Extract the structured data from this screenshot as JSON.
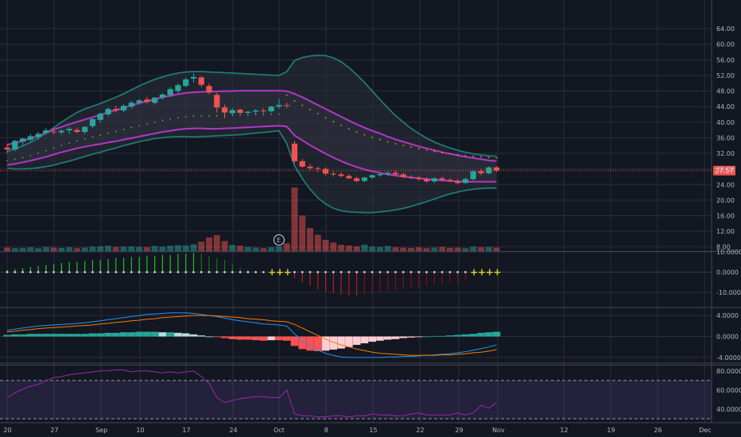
{
  "colors": {
    "background": "#131722",
    "grid": "#2a2e39",
    "up": "#26a69a",
    "down": "#ef5350",
    "band_outer": "#1f7a73",
    "band_inner": "#b535c9",
    "cross": "#d9d02a",
    "rsi_line": "#9c27b0",
    "macd_line": "#2196f3",
    "signal_line": "#f57c00"
  },
  "chart_data": [
    {
      "type": "candlestick",
      "title": "",
      "x_tick_labels": [
        "20",
        "27",
        "Sep",
        "10",
        "17",
        "24",
        "Oct",
        "8",
        "15",
        "22",
        "29",
        "Nov",
        "12",
        "19",
        "26",
        "Dec"
      ],
      "y_tick_labels": [
        "64.00",
        "60.00",
        "56.00",
        "52.00",
        "48.00",
        "44.00",
        "40.00",
        "36.00",
        "32.00",
        "28.00",
        "24.00",
        "20.00",
        "16.00",
        "12.00",
        "8.00"
      ],
      "ylim": [
        6,
        66
      ],
      "last_price": "27.57",
      "earnings_marker": "E",
      "grid": true,
      "candles": [
        [
          33.5,
          34.5,
          32.0,
          33.0
        ],
        [
          33.0,
          35.5,
          32.5,
          35.2
        ],
        [
          35.0,
          36.0,
          34.0,
          35.8
        ],
        [
          35.5,
          37.0,
          35.0,
          36.4
        ],
        [
          36.2,
          37.5,
          35.5,
          37.0
        ],
        [
          37.2,
          38.5,
          36.8,
          37.9
        ],
        [
          37.6,
          38.6,
          36.9,
          37.4
        ],
        [
          37.4,
          38.2,
          36.8,
          37.8
        ],
        [
          37.9,
          38.8,
          37.0,
          38.3
        ],
        [
          38.0,
          38.6,
          37.2,
          37.5
        ],
        [
          37.5,
          39.0,
          37.0,
          38.8
        ],
        [
          39.0,
          41.0,
          38.5,
          40.8
        ],
        [
          40.6,
          42.5,
          40.0,
          42.2
        ],
        [
          42.0,
          43.8,
          41.5,
          43.4
        ],
        [
          43.4,
          44.2,
          42.5,
          43.0
        ],
        [
          43.0,
          44.6,
          42.6,
          44.2
        ],
        [
          44.0,
          45.5,
          43.5,
          45.0
        ],
        [
          45.0,
          46.0,
          44.5,
          45.6
        ],
        [
          45.8,
          46.5,
          44.8,
          45.2
        ],
        [
          45.0,
          46.5,
          44.5,
          46.3
        ],
        [
          46.3,
          47.5,
          45.8,
          47.1
        ],
        [
          47.0,
          49.0,
          46.5,
          48.5
        ],
        [
          48.0,
          50.0,
          47.5,
          49.5
        ],
        [
          49.3,
          51.5,
          49.0,
          51.0
        ],
        [
          51.2,
          52.5,
          50.2,
          51.6
        ],
        [
          51.5,
          51.8,
          49.0,
          49.6
        ],
        [
          49.3,
          50.0,
          47.2,
          47.6
        ],
        [
          47.0,
          47.5,
          42.5,
          43.8
        ],
        [
          43.8,
          44.5,
          41.0,
          42.5
        ],
        [
          42.3,
          43.6,
          41.5,
          43.1
        ],
        [
          43.2,
          43.5,
          42.1,
          42.4
        ],
        [
          42.4,
          42.9,
          41.8,
          42.7
        ],
        [
          42.7,
          43.4,
          42.1,
          43.0
        ],
        [
          43.0,
          43.6,
          42.3,
          42.8
        ],
        [
          42.8,
          44.2,
          42.5,
          44.0
        ],
        [
          44.0,
          46.0,
          43.5,
          44.4
        ],
        [
          44.4,
          45.0,
          43.6,
          44.3
        ],
        [
          34.5,
          35.2,
          29.5,
          30.0
        ],
        [
          30.0,
          30.6,
          28.3,
          28.6
        ],
        [
          28.6,
          29.3,
          27.6,
          28.2
        ],
        [
          28.2,
          28.6,
          27.2,
          28.0
        ],
        [
          28.0,
          28.4,
          26.3,
          26.8
        ],
        [
          26.8,
          27.4,
          26.0,
          26.6
        ],
        [
          26.6,
          27.2,
          25.8,
          26.2
        ],
        [
          26.2,
          26.7,
          25.4,
          25.6
        ],
        [
          25.6,
          26.0,
          24.6,
          24.9
        ],
        [
          24.9,
          26.0,
          24.6,
          25.8
        ],
        [
          25.8,
          26.6,
          25.4,
          26.4
        ],
        [
          26.4,
          27.2,
          26.0,
          26.7
        ],
        [
          26.7,
          27.4,
          26.2,
          27.0
        ],
        [
          27.0,
          27.6,
          26.5,
          26.6
        ],
        [
          26.6,
          27.0,
          25.7,
          25.9
        ],
        [
          25.9,
          26.4,
          25.4,
          25.8
        ],
        [
          25.8,
          26.2,
          25.0,
          25.4
        ],
        [
          25.4,
          25.8,
          24.5,
          24.8
        ],
        [
          24.8,
          25.8,
          24.4,
          25.6
        ],
        [
          25.6,
          26.0,
          24.9,
          25.2
        ],
        [
          25.2,
          25.6,
          24.6,
          24.9
        ],
        [
          24.9,
          25.3,
          24.1,
          24.4
        ],
        [
          24.4,
          25.8,
          24.2,
          25.4
        ],
        [
          25.4,
          27.6,
          25.0,
          27.4
        ],
        [
          27.4,
          28.0,
          26.4,
          26.9
        ],
        [
          26.9,
          28.6,
          26.6,
          28.4
        ],
        [
          28.4,
          28.7,
          27.2,
          27.57
        ]
      ],
      "volumes": [
        1.2,
        1.0,
        1.1,
        1.3,
        1.0,
        1.4,
        1.2,
        1.1,
        1.3,
        1.0,
        1.2,
        1.5,
        1.6,
        1.8,
        1.4,
        1.5,
        1.6,
        1.4,
        1.3,
        1.7,
        1.5,
        1.8,
        2.0,
        1.9,
        2.3,
        3.2,
        4.6,
        5.4,
        3.4,
        2.1,
        1.8,
        1.4,
        1.2,
        1.0,
        1.3,
        1.6,
        2.6,
        21.5,
        12.0,
        7.8,
        5.5,
        3.8,
        2.9,
        2.1,
        1.9,
        1.6,
        2.2,
        1.5,
        1.4,
        1.7,
        1.3,
        1.2,
        1.1,
        1.3,
        1.0,
        1.2,
        1.4,
        1.1,
        1.2,
        1.0,
        1.5,
        1.3,
        1.4,
        1.2
      ],
      "volume_max": 21.5,
      "upper_outer": [
        32.5,
        33.2,
        33.9,
        34.8,
        35.9,
        37.2,
        38.6,
        40.0,
        41.3,
        42.5,
        43.4,
        44.1,
        44.8,
        45.6,
        46.4,
        47.3,
        48.3,
        49.3,
        50.2,
        51.0,
        51.6,
        52.2,
        52.6,
        52.9,
        53.0,
        53.0,
        52.9,
        52.8,
        52.7,
        52.6,
        52.5,
        52.4,
        52.3,
        52.2,
        52.1,
        52.0,
        53.0,
        55.8,
        56.6,
        57.0,
        57.2,
        57.1,
        56.5,
        55.5,
        54.0,
        52.2,
        50.2,
        48.0,
        45.8,
        43.7,
        41.7,
        40.0,
        38.4,
        37.1,
        35.9,
        34.9,
        34.1,
        33.4,
        32.8,
        32.3,
        31.9,
        31.6,
        31.4,
        31.3
      ],
      "upper_inner": [
        34.2,
        34.7,
        35.2,
        35.8,
        36.5,
        37.3,
        38.1,
        38.8,
        39.5,
        40.1,
        40.7,
        41.3,
        41.9,
        42.5,
        43.1,
        43.7,
        44.3,
        44.9,
        45.4,
        45.9,
        46.4,
        46.8,
        47.2,
        47.5,
        47.7,
        47.8,
        47.9,
        47.9,
        48.0,
        48.0,
        48.1,
        48.1,
        48.1,
        48.1,
        48.1,
        48.1,
        48.0,
        47.3,
        46.4,
        45.4,
        44.4,
        43.4,
        42.4,
        41.4,
        40.4,
        39.5,
        38.6,
        37.8,
        37.1,
        36.3,
        35.6,
        35.0,
        34.4,
        33.8,
        33.3,
        32.8,
        32.3,
        31.9,
        31.5,
        31.1,
        30.8,
        30.5,
        30.2,
        30.0
      ],
      "lower_inner": [
        29.0,
        29.3,
        29.7,
        30.1,
        30.6,
        31.1,
        31.7,
        32.3,
        32.8,
        33.3,
        33.7,
        34.1,
        34.4,
        34.8,
        35.1,
        35.5,
        35.9,
        36.3,
        36.7,
        37.1,
        37.5,
        37.8,
        38.1,
        38.3,
        38.4,
        38.4,
        38.3,
        38.3,
        38.4,
        38.5,
        38.6,
        38.7,
        38.8,
        38.9,
        39.0,
        39.1,
        38.9,
        36.6,
        35.3,
        34.1,
        33.0,
        31.9,
        30.9,
        30.0,
        29.2,
        28.5,
        27.9,
        27.4,
        27.0,
        26.6,
        26.3,
        26.0,
        25.8,
        25.6,
        25.4,
        25.2,
        25.0,
        24.9,
        24.8,
        24.7,
        24.7,
        24.7,
        24.7,
        24.7
      ],
      "lower_outer": [
        28.2,
        28.0,
        28.0,
        28.1,
        28.3,
        28.6,
        29.0,
        29.5,
        30.0,
        30.6,
        31.2,
        31.8,
        32.3,
        32.9,
        33.4,
        34.0,
        34.5,
        35.0,
        35.4,
        35.8,
        36.0,
        36.2,
        36.3,
        36.3,
        36.2,
        36.3,
        36.4,
        36.5,
        36.6,
        36.7,
        36.8,
        37.0,
        37.2,
        37.4,
        37.6,
        37.8,
        34.5,
        28.8,
        25.5,
        22.8,
        20.6,
        19.0,
        17.9,
        17.3,
        17.0,
        16.9,
        16.8,
        16.8,
        17.0,
        17.2,
        17.5,
        17.9,
        18.4,
        19.0,
        19.6,
        20.3,
        21.0,
        21.6,
        22.1,
        22.5,
        22.8,
        23.0,
        23.1,
        23.1
      ]
    },
    {
      "type": "bar",
      "title": "",
      "y_tick_labels": [
        "10.0000",
        "0.0000",
        "-10.0000"
      ],
      "ylim": [
        -13,
        10
      ],
      "values": [
        1.0,
        1.5,
        2.0,
        2.5,
        3.0,
        3.5,
        4.0,
        4.5,
        5.0,
        5.0,
        5.5,
        6.0,
        6.0,
        6.5,
        7.0,
        7.0,
        7.5,
        7.5,
        8.0,
        8.0,
        8.5,
        8.5,
        9.0,
        9.0,
        9.5,
        9.0,
        8.0,
        7.0,
        6.0,
        4.0,
        2.0,
        1.0,
        0.5,
        0.3,
        0.0,
        0.0,
        0.0,
        -3.0,
        -5.0,
        -7.0,
        -8.5,
        -9.5,
        -10.5,
        -11.0,
        -11.5,
        -11.5,
        -11.0,
        -10.5,
        -10.0,
        -9.5,
        -9.0,
        -8.5,
        -8.0,
        -7.5,
        -7.0,
        -6.5,
        -6.0,
        -5.5,
        -5.0,
        -4.0,
        0.0,
        0.0,
        0.0,
        0.0
      ],
      "squeeze_on": [
        false,
        false,
        false,
        false,
        false,
        false,
        false,
        false,
        false,
        false,
        false,
        false,
        false,
        false,
        false,
        false,
        false,
        false,
        false,
        false,
        false,
        false,
        false,
        false,
        false,
        false,
        false,
        false,
        false,
        false,
        false,
        false,
        false,
        false,
        true,
        true,
        true,
        false,
        false,
        false,
        false,
        false,
        false,
        false,
        false,
        false,
        false,
        false,
        false,
        false,
        false,
        false,
        false,
        false,
        false,
        false,
        false,
        false,
        false,
        false,
        true,
        true,
        true,
        true
      ]
    },
    {
      "type": "line",
      "title": "",
      "y_tick_labels": [
        "4.0000",
        "0.0000",
        "-4.0000"
      ],
      "ylim": [
        -5.2,
        5.2
      ],
      "series": [
        {
          "key": "macd",
          "values": [
            1.2,
            1.4,
            1.6,
            1.8,
            2.0,
            2.1,
            2.2,
            2.3,
            2.4,
            2.5,
            2.6,
            2.8,
            3.0,
            3.2,
            3.4,
            3.6,
            3.8,
            4.0,
            4.2,
            4.3,
            4.4,
            4.5,
            4.5,
            4.5,
            4.4,
            4.2,
            4.0,
            3.8,
            3.5,
            3.2,
            3.0,
            2.8,
            2.6,
            2.4,
            2.3,
            2.2,
            2.0,
            0.5,
            -0.8,
            -1.8,
            -2.6,
            -3.2,
            -3.6,
            -3.9,
            -4.0,
            -4.0,
            -4.0,
            -4.0,
            -4.0,
            -3.9,
            -3.9,
            -3.8,
            -3.8,
            -3.7,
            -3.6,
            -3.5,
            -3.4,
            -3.3,
            -3.1,
            -2.9,
            -2.6,
            -2.3,
            -2.0,
            -1.6
          ]
        },
        {
          "key": "signal",
          "values": [
            0.9,
            1.0,
            1.2,
            1.3,
            1.5,
            1.6,
            1.7,
            1.8,
            1.9,
            2.0,
            2.1,
            2.2,
            2.4,
            2.5,
            2.7,
            2.8,
            3.0,
            3.1,
            3.3,
            3.4,
            3.6,
            3.7,
            3.8,
            3.9,
            4.0,
            4.0,
            4.0,
            3.9,
            3.8,
            3.7,
            3.6,
            3.4,
            3.3,
            3.2,
            3.0,
            2.9,
            2.8,
            2.3,
            1.6,
            0.9,
            0.2,
            -0.5,
            -1.1,
            -1.6,
            -2.0,
            -2.4,
            -2.7,
            -3.0,
            -3.2,
            -3.3,
            -3.4,
            -3.5,
            -3.6,
            -3.6,
            -3.6,
            -3.6,
            -3.5,
            -3.5,
            -3.4,
            -3.3,
            -3.1,
            -3.0,
            -2.8,
            -2.5
          ]
        }
      ],
      "histogram": [
        0.3,
        0.4,
        0.4,
        0.5,
        0.5,
        0.5,
        0.5,
        0.5,
        0.5,
        0.5,
        0.5,
        0.6,
        0.6,
        0.7,
        0.7,
        0.8,
        0.8,
        0.9,
        0.9,
        0.9,
        0.8,
        0.8,
        0.7,
        0.6,
        0.4,
        0.2,
        0.0,
        -0.1,
        -0.3,
        -0.5,
        -0.6,
        -0.6,
        -0.7,
        -0.8,
        -0.7,
        -0.7,
        -0.8,
        -1.8,
        -2.4,
        -2.7,
        -2.8,
        -2.7,
        -2.5,
        -2.3,
        -2.0,
        -1.6,
        -1.3,
        -1.0,
        -0.8,
        -0.6,
        -0.5,
        -0.3,
        -0.2,
        -0.1,
        0.0,
        0.1,
        0.1,
        0.2,
        0.3,
        0.4,
        0.5,
        0.7,
        0.8,
        0.9
      ]
    },
    {
      "type": "line",
      "title": "",
      "y_tick_labels": [
        "80.0000",
        "60.0000",
        "40.0000"
      ],
      "ylim": [
        28,
        86
      ],
      "bands": [
        70,
        30
      ],
      "values": [
        52,
        57,
        61,
        64,
        66,
        70,
        73,
        74,
        76,
        77,
        78,
        79,
        80,
        80,
        81,
        81,
        79,
        80,
        80,
        79,
        78,
        79,
        78,
        79,
        80,
        74,
        67,
        52,
        47,
        49,
        51,
        52,
        53,
        53,
        52,
        52,
        60,
        35,
        33,
        33,
        32,
        32,
        33,
        33,
        32,
        33,
        33,
        35,
        34,
        34,
        33,
        33,
        35,
        36,
        34,
        34,
        34,
        34,
        36,
        34,
        36,
        44,
        41,
        47
      ]
    }
  ]
}
